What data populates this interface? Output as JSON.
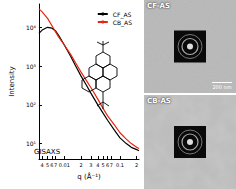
{
  "chart_data": {
    "type": "line",
    "x_label": "q (Å⁻¹)",
    "y_label": "Intensity",
    "annotation": "GISAXS",
    "log": true,
    "grid": false,
    "legend": "top-right",
    "x": [
      0.0035,
      0.004,
      0.005,
      0.006,
      0.007,
      0.008,
      0.01,
      0.013,
      0.016,
      0.02,
      0.025,
      0.03,
      0.04,
      0.05,
      0.06,
      0.08,
      0.1,
      0.13,
      0.16,
      0.2,
      0.22
    ],
    "series": [
      {
        "name": "CF_AS",
        "color": "#000000",
        "values": [
          7000,
          8500,
          10000,
          9500,
          8000,
          6000,
          3500,
          1800,
          1000,
          550,
          320,
          200,
          100,
          60,
          40,
          22,
          14,
          10,
          8,
          7,
          6.5
        ]
      },
      {
        "name": "CB_AS",
        "color": "#e8250f",
        "values": [
          30000,
          25000,
          17000,
          11000,
          7500,
          5500,
          3500,
          2000,
          1200,
          700,
          420,
          280,
          140,
          80,
          52,
          30,
          19,
          13,
          10,
          8,
          7.5
        ]
      }
    ],
    "xlim": [
      0.0035,
      0.22
    ],
    "xticks": [
      {
        "value": 0.004,
        "label": "4"
      },
      {
        "value": 0.005,
        "label": "5"
      },
      {
        "value": 0.006,
        "label": "6"
      },
      {
        "value": 0.007,
        "label": "7"
      },
      0.01,
      {
        "value": 0.02,
        "label": "2"
      },
      {
        "value": 0.03,
        "label": "3"
      },
      {
        "value": 0.04,
        "label": "4"
      },
      {
        "value": 0.05,
        "label": "5"
      },
      {
        "value": 0.06,
        "label": "6"
      },
      {
        "value": 0.07,
        "label": "7"
      },
      0.1,
      {
        "value": 0.2,
        "label": "2"
      }
    ],
    "ylim": [
      4,
      40000
    ],
    "yticks": [
      {
        "value": 10,
        "label": "10¹"
      },
      {
        "value": 100,
        "label": "10²"
      },
      {
        "value": 1000,
        "label": "10³"
      },
      {
        "value": 10000,
        "label": "10⁴"
      }
    ]
  },
  "panels": [
    {
      "label": "CF-AS",
      "scale_bar": "200 nm"
    },
    {
      "label": "CB-AS"
    }
  ]
}
